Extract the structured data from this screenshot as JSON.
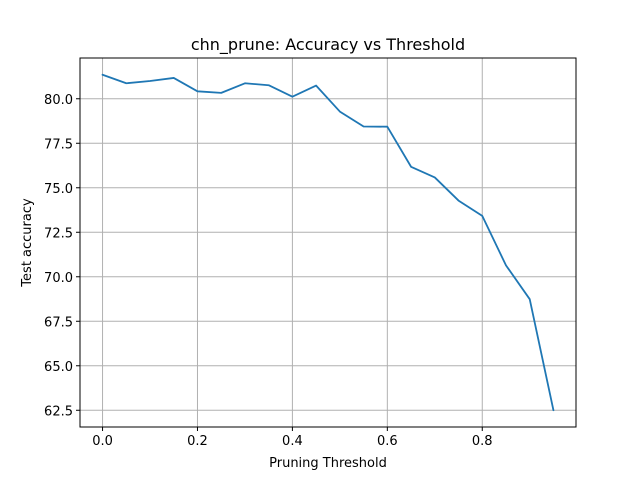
{
  "chart_data": {
    "type": "line",
    "title": "chn_prune: Accuracy vs Threshold",
    "xlabel": "Pruning Threshold",
    "ylabel": "Test accuracy",
    "xlim": [
      -0.0475,
      0.9975
    ],
    "ylim": [
      61.56,
      82.29
    ],
    "grid": true,
    "xticks": [
      0.0,
      0.2,
      0.4,
      0.6,
      0.8
    ],
    "xtick_labels": [
      "0.0",
      "0.2",
      "0.4",
      "0.6",
      "0.8"
    ],
    "yticks": [
      62.5,
      65.0,
      67.5,
      70.0,
      72.5,
      75.0,
      77.5,
      80.0
    ],
    "ytick_labels": [
      "62.5",
      "65.0",
      "67.5",
      "70.0",
      "72.5",
      "75.0",
      "77.5",
      "80.0"
    ],
    "series": [
      {
        "color": "#1f77b4",
        "x": [
          0.0,
          0.05,
          0.1,
          0.15,
          0.2,
          0.25,
          0.3,
          0.35,
          0.4,
          0.45,
          0.5,
          0.55,
          0.6,
          0.65,
          0.7,
          0.75,
          0.8,
          0.85,
          0.9,
          0.95
        ],
        "y": [
          81.35,
          80.87,
          81.0,
          81.17,
          80.42,
          80.33,
          80.87,
          80.76,
          80.12,
          80.74,
          79.28,
          78.44,
          78.43,
          76.18,
          75.58,
          74.28,
          73.42,
          70.64,
          68.74,
          62.5
        ]
      }
    ]
  }
}
